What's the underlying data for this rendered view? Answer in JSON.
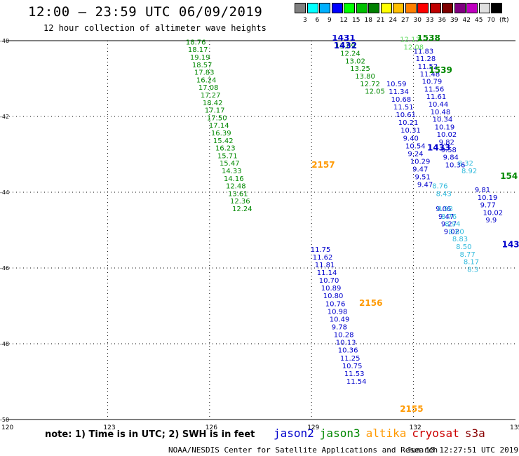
{
  "header": {
    "title": "12:00 – 23:59 UTC 06/09/2019",
    "subtitle": "12 hour collection of altimeter wave heights"
  },
  "colorbar": {
    "colors": [
      "#808080",
      "#00ffff",
      "#00b0ff",
      "#0000ff",
      "#00ff00",
      "#00c000",
      "#008000",
      "#ffff00",
      "#ffc000",
      "#ff8000",
      "#ff0000",
      "#c00000",
      "#800000",
      "#800080",
      "#c000c0",
      "#e0e0e0",
      "#000000"
    ],
    "labels": [
      "3",
      "6",
      "9",
      "12",
      "15",
      "18",
      "21",
      "24",
      "27",
      "30",
      "33",
      "36",
      "39",
      "42",
      "45",
      "70",
      "(ft)"
    ]
  },
  "map": {
    "lat_labels": [
      "-40",
      "-42",
      "-44",
      "-46",
      "-48",
      "-50"
    ],
    "lon_labels": [
      "120",
      "123",
      "126",
      "129",
      "132",
      "135"
    ]
  },
  "legend": {
    "note": "note: 1) Time is in UTC; 2) SWH is in feet",
    "satellites": [
      {
        "name": "jason2",
        "color": "#0000cc"
      },
      {
        "name": "jason3",
        "color": "#008800"
      },
      {
        "name": "altika",
        "color": "#ff9900"
      },
      {
        "name": "cryosat",
        "color": "#cc0000"
      },
      {
        "name": "s3a",
        "color": "#880000"
      }
    ]
  },
  "footer": {
    "credit": "NOAA/NESDIS Center for Satellite Applications and Research",
    "timestamp": "Jun 10 12:27:51 UTC 2019"
  },
  "tracks": [
    {
      "sat": "jason3",
      "lon_start": 125.3,
      "lat_start": -40.1,
      "lon_step": 0.062,
      "lat_step": -0.2,
      "values": [
        "18.76",
        "18.17",
        "19.19",
        "18.57",
        "17.83",
        "16.24",
        "17.08",
        "17.27",
        "18.42",
        "17.17",
        "17.50",
        "17.14",
        "16.39",
        "15.42",
        "16.23",
        "15.71",
        "15.47",
        "14.33",
        "14.16",
        "12.48",
        "13.61",
        "12.36",
        "12.24"
      ]
    },
    {
      "sat": "jason2",
      "lon_start": 128.97,
      "lat_start": -45.57,
      "lon_step": 0.062,
      "lat_step": -0.205,
      "values": [
        "11.75",
        "11.62",
        "11.81",
        "11.14",
        "10.70",
        "10.89",
        "10.80",
        "10.76",
        "10.98",
        "10.49",
        "9.78",
        "10.28",
        "10.13",
        "10.36",
        "11.25",
        "10.75",
        "11.53",
        "11.54"
      ]
    },
    {
      "sat": "jason3",
      "lon_start": 129.7,
      "lat_start": -40.2,
      "lon_step": 0.145,
      "lat_step": -0.2,
      "values": [
        "13.09",
        "12.24",
        "13.02",
        "13.25",
        "13.80",
        "12.72",
        "12.05"
      ]
    },
    {
      "sat": "jason2",
      "lon_start": 131.2,
      "lat_start": -41.2,
      "lon_step": 0.07,
      "lat_step": -0.205,
      "values": [
        "10.59",
        "11.34",
        "10.68",
        "11.51",
        "10.61",
        "10.21",
        "10.31",
        "9.40",
        "10.54",
        "9.24",
        "10.29",
        "9.47",
        "9.51",
        "9.47"
      ]
    },
    {
      "sat": "jason2",
      "lon_start": 132.0,
      "lat_start": -40.34,
      "lon_step": 0.062,
      "lat_step": -0.2,
      "values": [
        "11.83",
        "11.28",
        "11.52",
        "11.48",
        "10.79",
        "11.56",
        "11.61",
        "10.44",
        "10.48",
        "10.34",
        "10.19",
        "10.02",
        "9.82",
        "9.58",
        "9.84",
        "10.36"
      ]
    },
    {
      "sat": "jason2",
      "lon_start": 133.8,
      "lat_start": -44.0,
      "lon_step": 0.08,
      "lat_step": -0.2,
      "values": [
        "9.81",
        "10.19",
        "9.77",
        "10.02",
        "9.9"
      ]
    },
    {
      "sat": "jason2",
      "lon_start": 132.65,
      "lat_start": -44.5,
      "lon_step": 0.08,
      "lat_step": -0.2,
      "values": [
        "9.06",
        "9.47",
        "9.27",
        "9.02"
      ]
    }
  ],
  "light_tracks": [
    {
      "sat": "jason3",
      "lon_start": 131.6,
      "lat_start": -40.03,
      "values": [
        "12.13",
        "12.08"
      ]
    },
    {
      "sat": "jason2",
      "lon_start": 133.3,
      "lat_start": -43.3,
      "values": [
        "8.32",
        "8.92"
      ]
    },
    {
      "sat": "jason2",
      "lon_start": 132.55,
      "lat_start": -43.9,
      "values": [
        "8.76",
        "8.43"
      ]
    },
    {
      "sat": "jason2",
      "lon_start": 132.7,
      "lat_start": -44.5,
      "values": [
        "8.98",
        "8.76",
        "8.94",
        "8.60",
        "8.83",
        "8.50",
        "8.77",
        "8.17",
        "8.3"
      ]
    }
  ],
  "time_marks": [
    {
      "label": "1431",
      "lon": 129.6,
      "lat": -40.0,
      "sat": "jason2"
    },
    {
      "label": "1432",
      "lon": 129.65,
      "lat": -40.2,
      "sat": "jason2"
    },
    {
      "label": "1538",
      "lon": 132.1,
      "lat": -40.0,
      "sat": "jason3"
    },
    {
      "label": "1539",
      "lon": 132.45,
      "lat": -40.85,
      "sat": "jason3"
    },
    {
      "label": "1433",
      "lon": 132.4,
      "lat": -42.9,
      "sat": "jason2"
    },
    {
      "label": "154",
      "lon": 134.55,
      "lat": -43.65,
      "sat": "jason3"
    },
    {
      "label": "143",
      "lon": 134.6,
      "lat": -45.45,
      "sat": "jason2"
    },
    {
      "label": "2157",
      "lon": 129.0,
      "lat": -43.35,
      "sat": "altika"
    },
    {
      "label": "2156",
      "lon": 130.4,
      "lat": -47.0,
      "sat": "altika"
    },
    {
      "label": "2155",
      "lon": 131.6,
      "lat": -49.8,
      "sat": "altika"
    }
  ]
}
